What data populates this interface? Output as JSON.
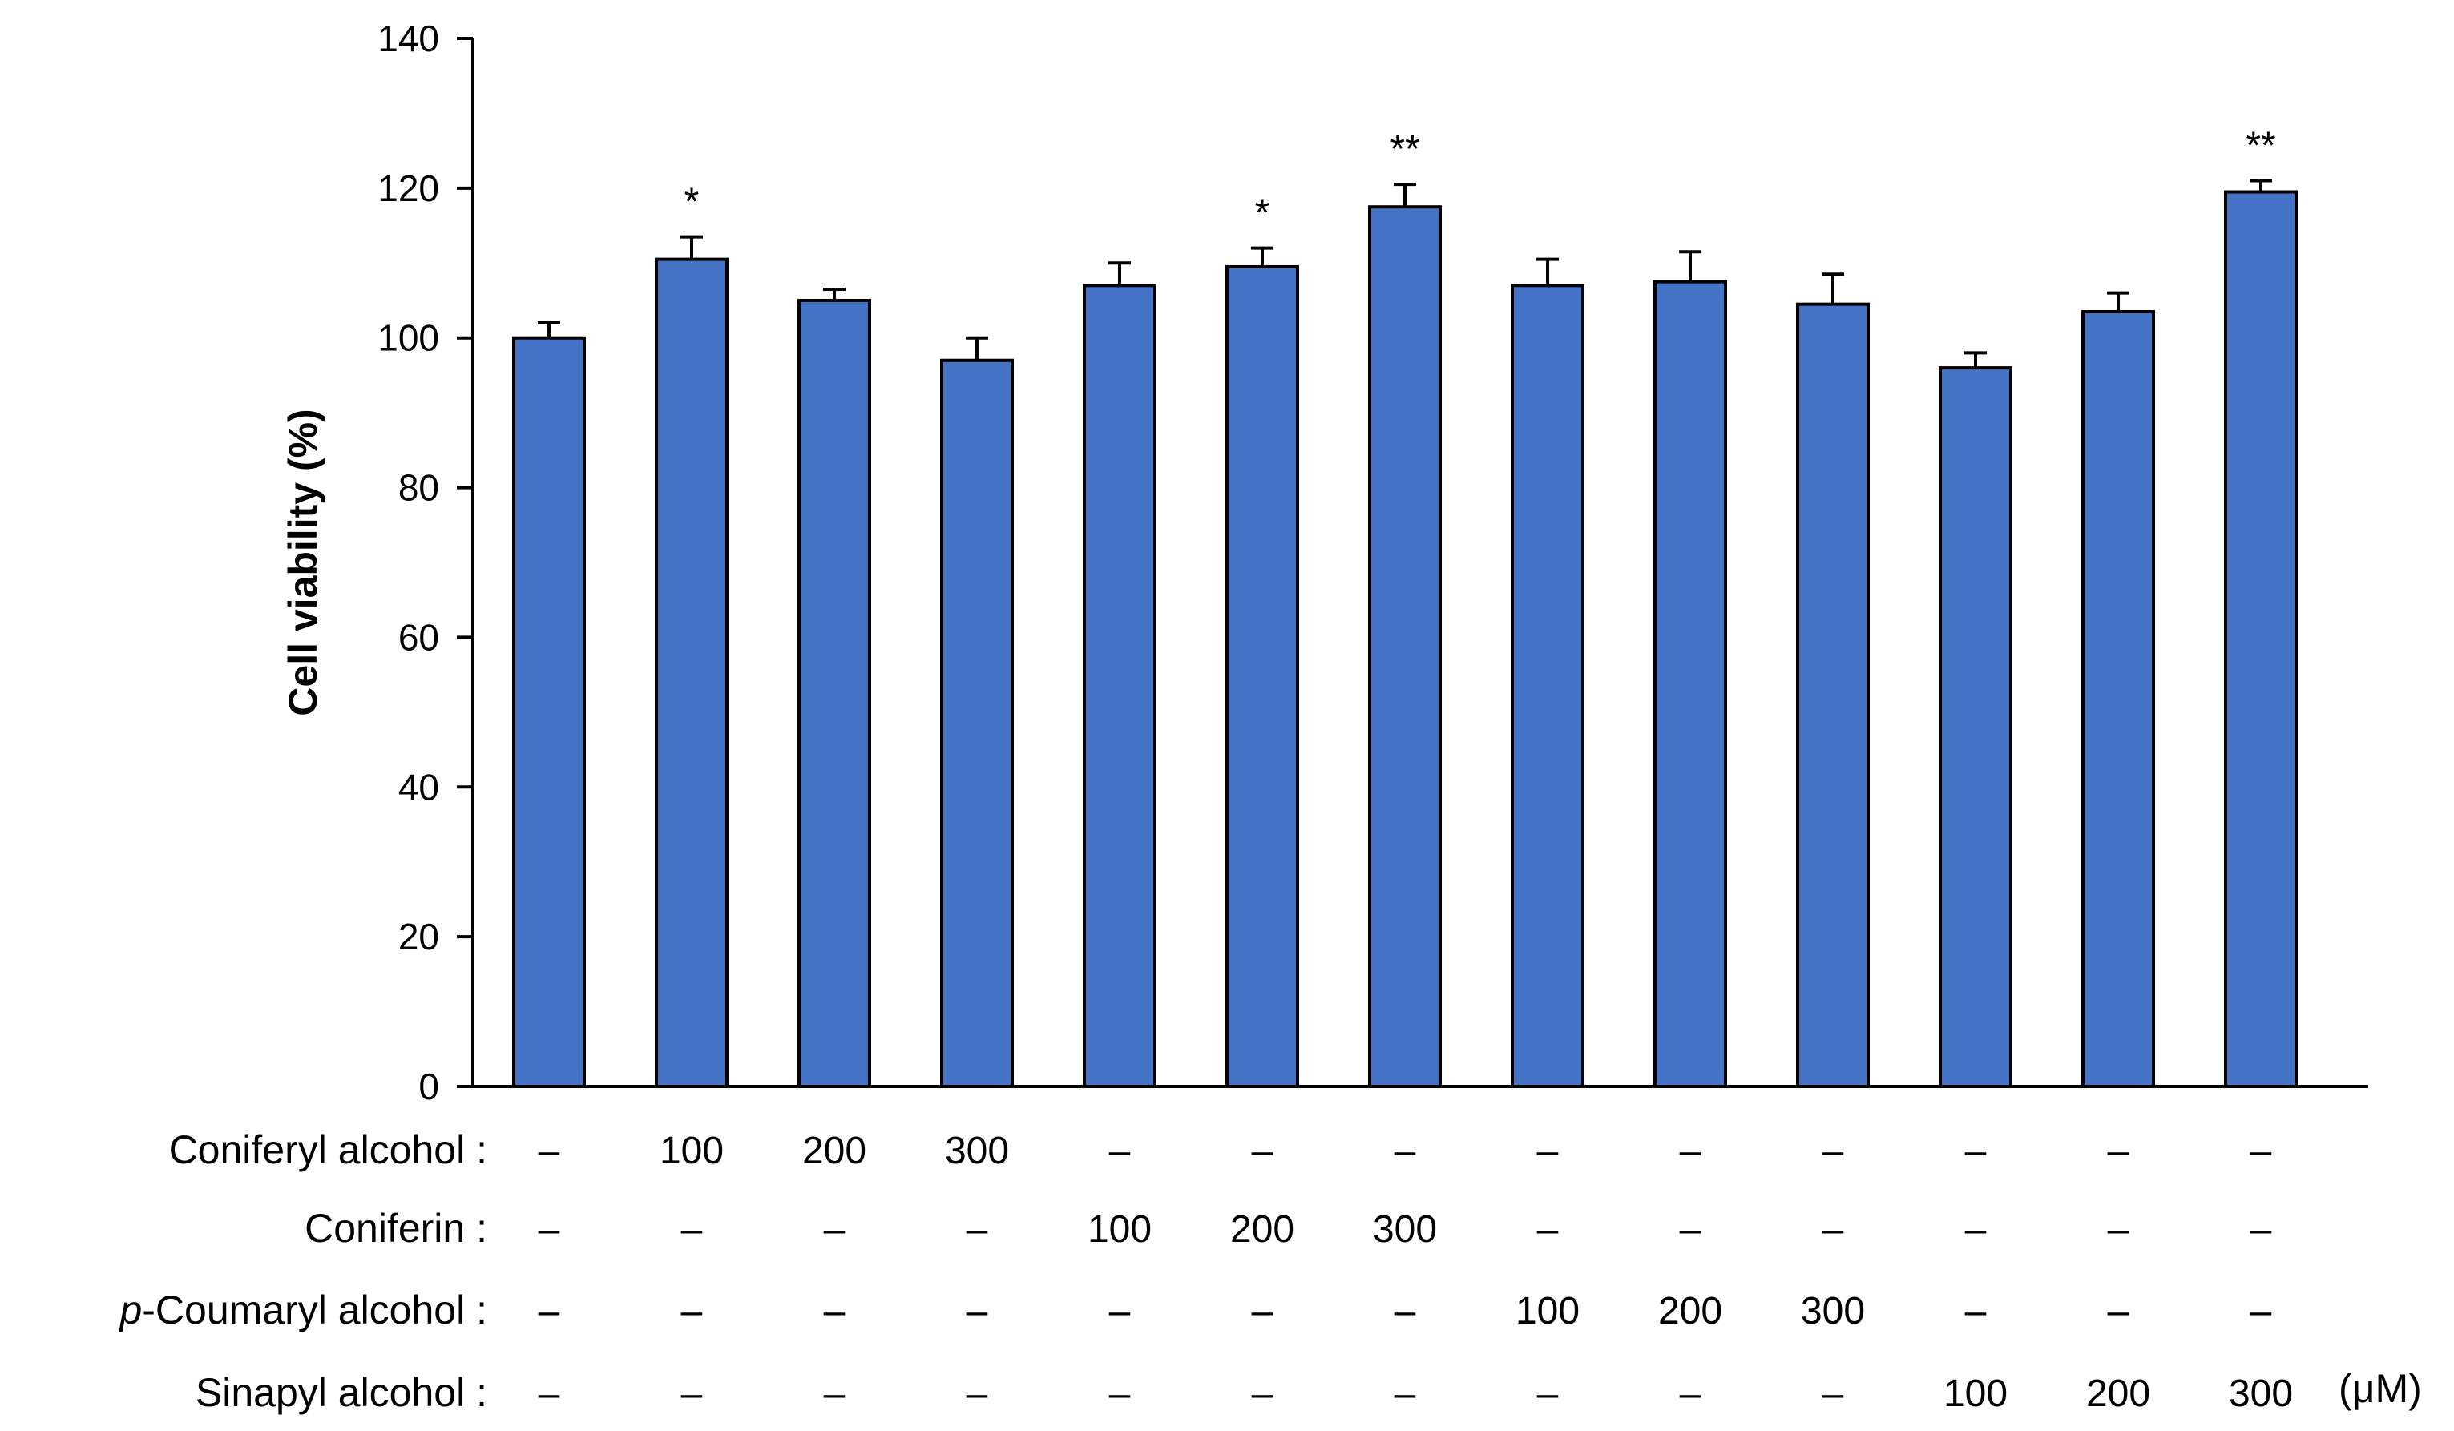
{
  "chart_data": {
    "type": "bar",
    "ylabel": "Cell viability (%)",
    "ylim": [
      0,
      140
    ],
    "yticks": [
      0,
      20,
      40,
      60,
      80,
      100,
      120,
      140
    ],
    "grid": false,
    "bar_color": "#4472C4",
    "values": [
      100,
      110.5,
      105,
      97,
      107,
      109.5,
      117.5,
      107,
      107.5,
      104.5,
      96,
      103.5,
      119.5
    ],
    "errors": [
      2.0,
      3.0,
      1.5,
      3.0,
      3.0,
      2.5,
      3.0,
      3.5,
      4.0,
      4.0,
      2.0,
      2.5,
      1.5
    ],
    "significance": [
      "",
      "*",
      "",
      "",
      "",
      "*",
      "**",
      "",
      "",
      "",
      "",
      "",
      "**"
    ],
    "treatment_rows": [
      {
        "label": "Coniferyl alcohol :",
        "values": [
          "–",
          "100",
          "200",
          "300",
          "–",
          "–",
          "–",
          "–",
          "–",
          "–",
          "–",
          "–",
          "–"
        ]
      },
      {
        "label": "Coniferin :",
        "values": [
          "–",
          "–",
          "–",
          "–",
          "100",
          "200",
          "300",
          "–",
          "–",
          "–",
          "–",
          "–",
          "–"
        ]
      },
      {
        "label_italic": "p",
        "label": "-Coumaryl alcohol :",
        "values": [
          "–",
          "–",
          "–",
          "–",
          "–",
          "–",
          "–",
          "100",
          "200",
          "300",
          "–",
          "–",
          "–"
        ]
      },
      {
        "label": "Sinapyl alcohol :",
        "values": [
          "–",
          "–",
          "–",
          "–",
          "–",
          "–",
          "–",
          "–",
          "–",
          "–",
          "100",
          "200",
          "300"
        ]
      }
    ],
    "unit": "(μM)"
  }
}
